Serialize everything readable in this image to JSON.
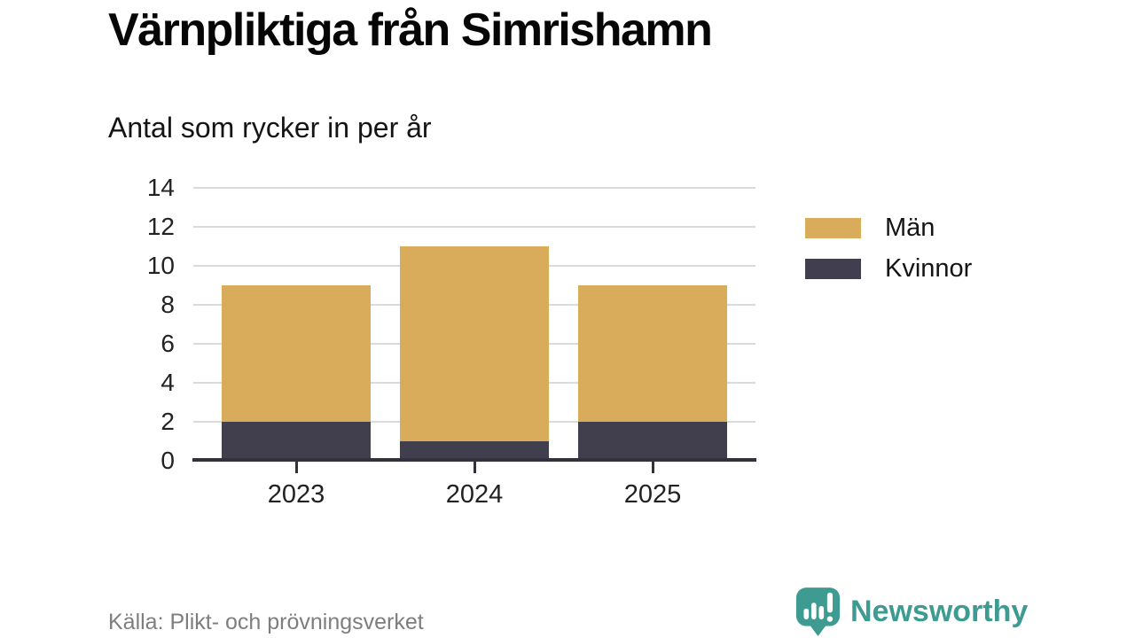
{
  "chart_data": {
    "type": "bar",
    "stacked": true,
    "title": "Värnpliktiga från Simrishamn",
    "subtitle": "Antal som rycker in per år",
    "categories": [
      "2023",
      "2024",
      "2025"
    ],
    "series": [
      {
        "name": "Kvinnor",
        "color": "#413e4e",
        "values": [
          2,
          1,
          2
        ]
      },
      {
        "name": "Män",
        "color": "#d8ac5b",
        "values": [
          7,
          10,
          7
        ]
      }
    ],
    "totals": [
      9,
      11,
      9
    ],
    "ylim": [
      0,
      14
    ],
    "yticks": [
      0,
      2,
      4,
      6,
      8,
      10,
      12,
      14
    ],
    "legend_order": [
      "Män",
      "Kvinnor"
    ],
    "legend_position": "right",
    "grid": "horizontal",
    "gridline_color": "#dbdbdb",
    "axis_color": "#34313c",
    "source": "Källa: Plikt- och prövningsverket"
  },
  "branding": {
    "wordmark": "Newsworthy",
    "color": "#3e9b92"
  }
}
